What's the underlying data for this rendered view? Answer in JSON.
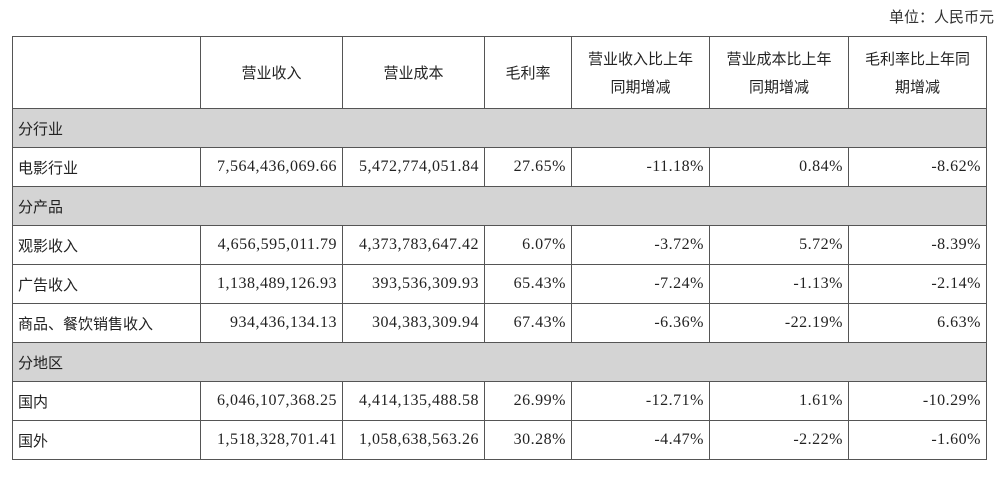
{
  "unit_label": "单位：人民币元",
  "headers": {
    "blank": "",
    "revenue": "营业收入",
    "cost": "营业成本",
    "margin": "毛利率",
    "rev_change": [
      "营业收入比上年",
      "同期增减"
    ],
    "cost_change": [
      "营业成本比上年",
      "同期增减"
    ],
    "margin_change": [
      "毛利率比上年同",
      "期增减"
    ]
  },
  "sections": [
    {
      "title": "分行业",
      "rows": [
        {
          "name": "电影行业",
          "revenue": "7,564,436,069.66",
          "cost": "5,472,774,051.84",
          "margin": "27.65%",
          "rev_change": "-11.18%",
          "cost_change": "0.84%",
          "margin_change": "-8.62%"
        }
      ]
    },
    {
      "title": "分产品",
      "rows": [
        {
          "name": "观影收入",
          "revenue": "4,656,595,011.79",
          "cost": "4,373,783,647.42",
          "margin": "6.07%",
          "rev_change": "-3.72%",
          "cost_change": "5.72%",
          "margin_change": "-8.39%"
        },
        {
          "name": "广告收入",
          "revenue": "1,138,489,126.93",
          "cost": "393,536,309.93",
          "margin": "65.43%",
          "rev_change": "-7.24%",
          "cost_change": "-1.13%",
          "margin_change": "-2.14%"
        },
        {
          "name": "商品、餐饮销售收入",
          "revenue": "934,436,134.13",
          "cost": "304,383,309.94",
          "margin": "67.43%",
          "rev_change": "-6.36%",
          "cost_change": "-22.19%",
          "margin_change": "6.63%"
        }
      ]
    },
    {
      "title": "分地区",
      "rows": [
        {
          "name": "国内",
          "revenue": "6,046,107,368.25",
          "cost": "4,414,135,488.58",
          "margin": "26.99%",
          "rev_change": "-12.71%",
          "cost_change": "1.61%",
          "margin_change": "-10.29%"
        },
        {
          "name": "国外",
          "revenue": "1,518,328,701.41",
          "cost": "1,058,638,563.26",
          "margin": "30.28%",
          "rev_change": "-4.47%",
          "cost_change": "-2.22%",
          "margin_change": "-1.60%"
        }
      ]
    }
  ]
}
